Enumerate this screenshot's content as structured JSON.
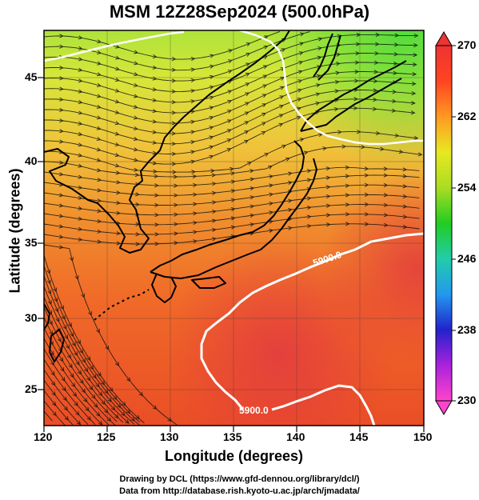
{
  "title": "MSM 12Z28Sep2024 (500.0hPa)",
  "axes": {
    "xlabel": "Longitude (degrees)",
    "ylabel": "Latitude  (degrees)",
    "xticks": [
      "120",
      "125",
      "130",
      "135",
      "140",
      "145",
      "150"
    ],
    "yticks": [
      "45",
      "40",
      "35",
      "30",
      "25"
    ],
    "xlim": [
      120,
      150
    ],
    "ylim": [
      22.5,
      47.5
    ]
  },
  "colorbar": {
    "ticks": [
      "270",
      "262",
      "254",
      "246",
      "238",
      "230"
    ],
    "range": [
      230,
      270
    ],
    "colors": [
      "#ff44cc",
      "#aa22dd",
      "#2222cc",
      "#2299ee",
      "#22ccaa",
      "#22cc22",
      "#aadd22",
      "#e8e822",
      "#ff9922",
      "#ff4422",
      "#ee3333"
    ]
  },
  "contours": {
    "label_upper": "5900.0",
    "label_lower": "5900.0"
  },
  "credits": {
    "line1": "Drawing by DCL (https://www.gfd-dennou.org/library/dcl/)",
    "line2": "Data from http://database.rish.kyoto-u.ac.jp/arch/jmadata/"
  }
}
